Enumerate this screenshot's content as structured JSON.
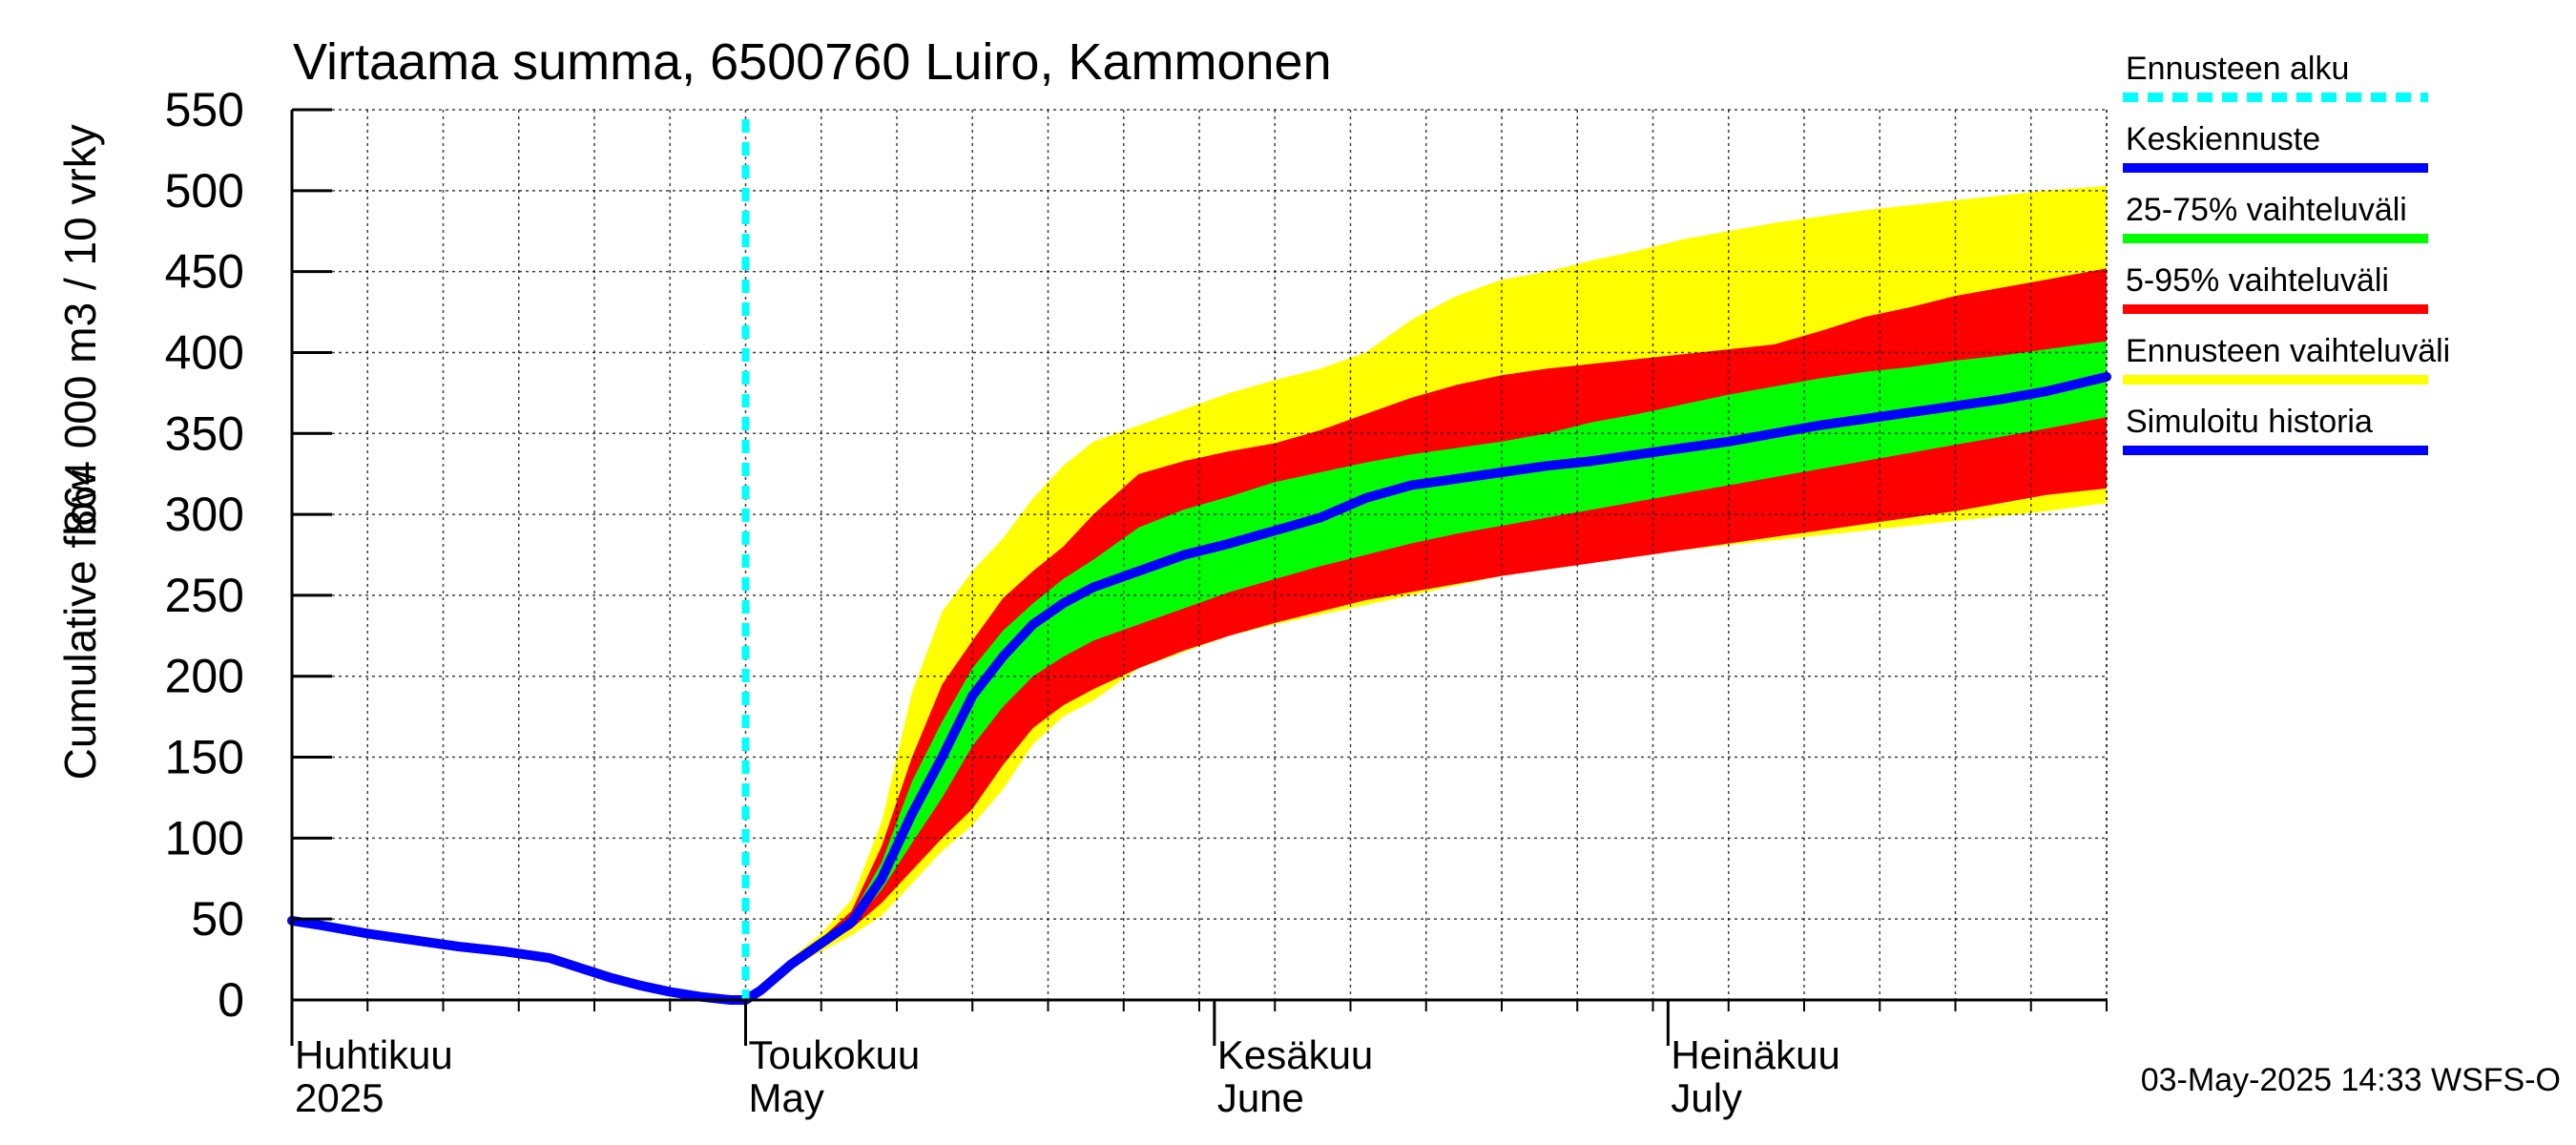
{
  "chart_data": {
    "type": "area",
    "title": "Virtaama summa, 6500760 Luiro, Kammonen",
    "ylabel_line1": "Cumulative flow",
    "ylabel_line2": "864 000 m3 / 10 vrky",
    "ylim": [
      0,
      550
    ],
    "yticks": [
      0,
      50,
      100,
      150,
      200,
      250,
      300,
      350,
      400,
      450,
      500,
      550
    ],
    "x_range_days": [
      0,
      120
    ],
    "month_labels": [
      {
        "day": 0,
        "fi": "Huhtikuu",
        "en": "2025"
      },
      {
        "day": 30,
        "fi": "Toukokuu",
        "en": "May"
      },
      {
        "day": 61,
        "fi": "Kesäkuu",
        "en": "June"
      },
      {
        "day": 91,
        "fi": "Heinäkuu",
        "en": "July"
      }
    ],
    "forecast_start_day": 30,
    "colors": {
      "forecast_start": "#00ffff",
      "median": "#0000ff",
      "band_25_75": "#00ff00",
      "band_5_95": "#ff0000",
      "band_full": "#ffff00",
      "history": "#0000ff"
    },
    "legend": [
      {
        "label": "Ennusteen alku",
        "key": "forecast_start",
        "style": "dashed"
      },
      {
        "label": "Keskiennuste",
        "key": "median",
        "style": "solid"
      },
      {
        "label": "25-75% vaihteluväli",
        "key": "band_25_75",
        "style": "solid"
      },
      {
        "label": "5-95% vaihteluväli",
        "key": "band_5_95",
        "style": "solid"
      },
      {
        "label": "Ennusteen vaihteluväli",
        "key": "band_full",
        "style": "solid"
      },
      {
        "label": "Simuloitu historia",
        "key": "history",
        "style": "solid"
      }
    ],
    "history": {
      "x": [
        0,
        2,
        5,
        8,
        11,
        14,
        17,
        19,
        21,
        23,
        25,
        27,
        29,
        30
      ],
      "y": [
        49,
        46,
        41,
        37,
        33,
        30,
        26,
        20,
        14,
        9,
        5,
        2,
        0,
        0
      ]
    },
    "forecast_x": [
      30,
      31,
      33,
      35,
      37,
      39,
      41,
      43,
      45,
      47,
      49,
      51,
      53,
      56,
      59,
      62,
      65,
      68,
      71,
      74,
      77,
      80,
      83,
      86,
      89,
      92,
      95,
      98,
      101,
      104,
      107,
      110,
      113,
      116,
      120
    ],
    "median": [
      0,
      6,
      22,
      35,
      48,
      75,
      115,
      150,
      188,
      212,
      232,
      245,
      255,
      265,
      275,
      282,
      290,
      298,
      310,
      318,
      322,
      326,
      330,
      333,
      337,
      341,
      345,
      350,
      355,
      359,
      363,
      367,
      371,
      376,
      385
    ],
    "band_25_75": {
      "low": [
        0,
        6,
        22,
        34,
        46,
        68,
        97,
        125,
        157,
        181,
        200,
        212,
        222,
        232,
        242,
        252,
        260,
        268,
        275,
        282,
        288,
        293,
        298,
        303,
        308,
        313,
        318,
        323,
        328,
        333,
        338,
        343,
        348,
        353,
        360
      ],
      "high": [
        0,
        6,
        23,
        37,
        52,
        85,
        135,
        172,
        205,
        228,
        245,
        260,
        272,
        292,
        303,
        311,
        320,
        326,
        332,
        337,
        341,
        345,
        350,
        357,
        362,
        368,
        374,
        379,
        384,
        388,
        391,
        395,
        398,
        402,
        407
      ]
    },
    "band_5_95": {
      "low": [
        0,
        6,
        21,
        33,
        44,
        60,
        80,
        100,
        118,
        145,
        168,
        182,
        192,
        205,
        216,
        225,
        233,
        240,
        247,
        252,
        257,
        262,
        266,
        270,
        274,
        278,
        282,
        286,
        290,
        294,
        298,
        302,
        307,
        312,
        316
      ],
      "high": [
        0,
        6,
        24,
        38,
        55,
        95,
        150,
        195,
        222,
        248,
        265,
        280,
        300,
        325,
        333,
        339,
        344,
        352,
        362,
        372,
        380,
        386,
        390,
        393,
        396,
        399,
        402,
        405,
        413,
        422,
        428,
        435,
        440,
        445,
        452
      ]
    },
    "band_full": {
      "low": [
        0,
        6,
        20,
        30,
        40,
        52,
        72,
        92,
        108,
        130,
        158,
        175,
        185,
        205,
        215,
        225,
        232,
        238,
        244,
        250,
        256,
        262,
        266,
        270,
        274,
        278,
        281,
        284,
        287,
        290,
        293,
        296,
        299,
        302,
        307
      ],
      "high": [
        0,
        6,
        26,
        41,
        62,
        110,
        190,
        240,
        265,
        285,
        310,
        330,
        345,
        355,
        365,
        375,
        383,
        390,
        400,
        420,
        435,
        445,
        450,
        457,
        463,
        470,
        475,
        480,
        484,
        488,
        491,
        494,
        497,
        500,
        503
      ]
    },
    "footer": "03-May-2025 14:33 WSFS-O"
  }
}
